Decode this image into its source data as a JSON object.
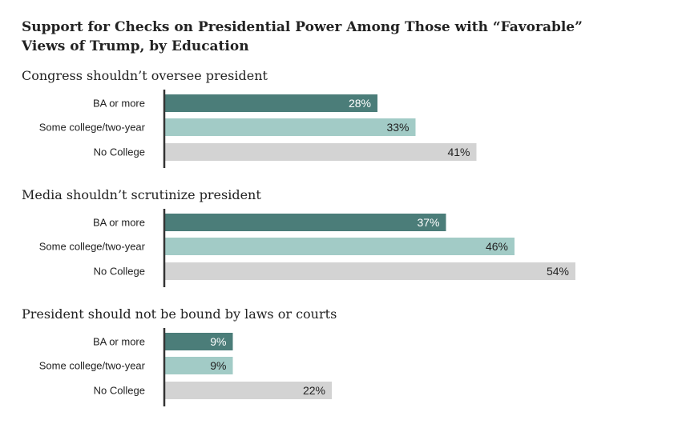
{
  "title_lines": [
    "Support for Checks on Presidential Power Among Those with “Favorable”",
    "Views of Trump, by Education"
  ],
  "colors": {
    "BA or more": "#4b7d79",
    "Some college/two-year": "#a2cbc6",
    "No College": "#d3d3d3",
    "axis": "#333333"
  },
  "chart_data": [
    {
      "type": "bar",
      "title": "Congress shouldn’t oversee president",
      "categories": [
        "BA or more",
        "Some college/two-year",
        "No College"
      ],
      "values": [
        28,
        33,
        41
      ],
      "value_labels": [
        "28%",
        "33%",
        "41%"
      ]
    },
    {
      "type": "bar",
      "title": "Media shouldn’t scrutinize president",
      "categories": [
        "BA or more",
        "Some college/two-year",
        "No College"
      ],
      "values": [
        37,
        46,
        54
      ],
      "value_labels": [
        "37%",
        "46%",
        "54%"
      ]
    },
    {
      "type": "bar",
      "title": "President should not be bound by laws or courts",
      "categories": [
        "BA or more",
        "Some college/two-year",
        "No College"
      ],
      "values": [
        9,
        9,
        22
      ],
      "value_labels": [
        "9%",
        "9%",
        "22%"
      ]
    }
  ]
}
